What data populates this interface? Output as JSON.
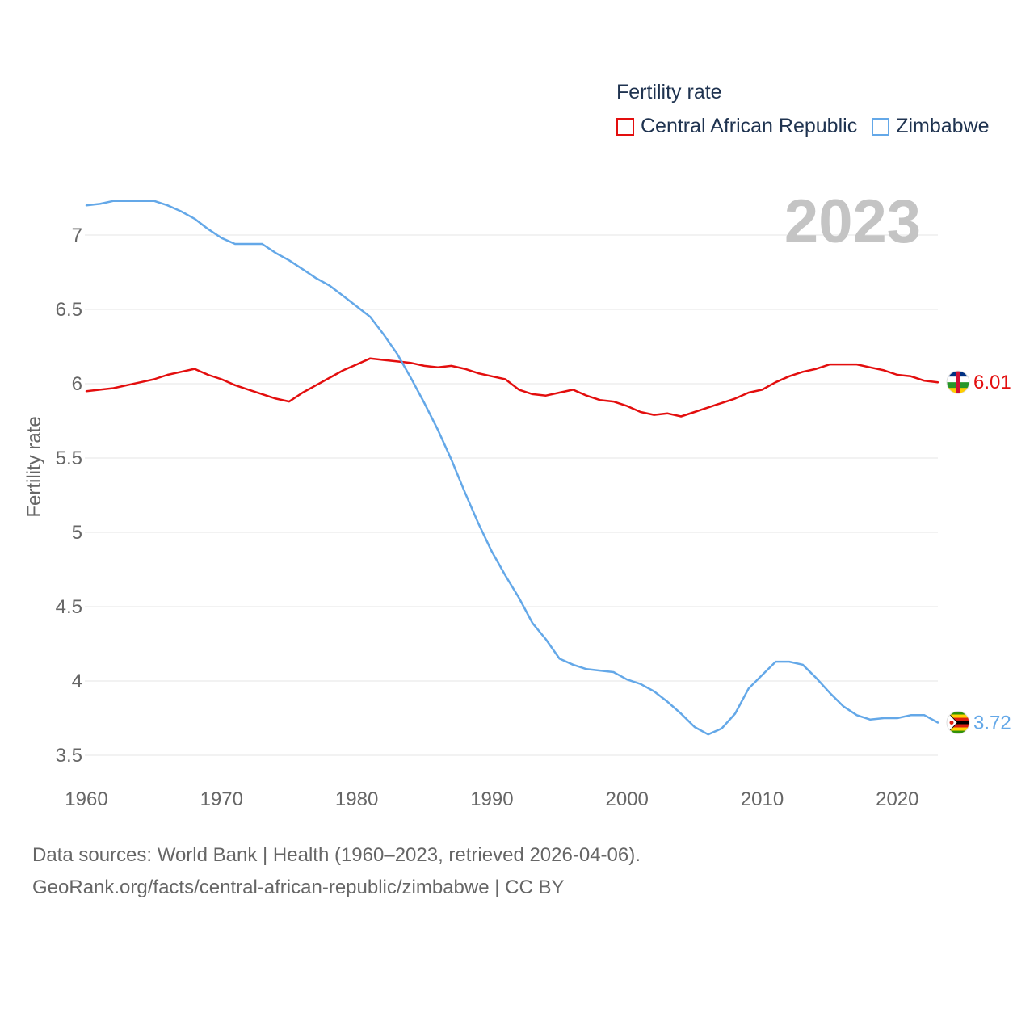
{
  "legend": {
    "title": "Fertility rate",
    "items": [
      {
        "label": "Central African Republic",
        "color": "#e30e0e"
      },
      {
        "label": "Zimbabwe",
        "color": "#64a8e8"
      }
    ]
  },
  "footer": {
    "line1": "Data sources: World Bank | Health (1960–2023, retrieved 2026-04-06).",
    "line2": "GeoRank.org/facts/central-african-republic/zimbabwe | CC BY"
  },
  "chart_data": {
    "type": "line",
    "title": "Fertility rate",
    "year_label": "2023",
    "xlabel": "",
    "ylabel": "Fertility rate",
    "xlim": [
      1960,
      2023
    ],
    "ylim": [
      3.5,
      7.2
    ],
    "x_ticks": [
      1960,
      1970,
      1980,
      1990,
      2000,
      2010,
      2020
    ],
    "y_ticks": [
      3.5,
      4,
      4.5,
      5,
      5.5,
      6,
      6.5,
      7
    ],
    "y_tick_labels": [
      "3.5",
      "4",
      "4.5",
      "5",
      "5.5",
      "6",
      "6.5",
      "7"
    ],
    "grid": true,
    "x": [
      1960,
      1961,
      1962,
      1963,
      1964,
      1965,
      1966,
      1967,
      1968,
      1969,
      1970,
      1971,
      1972,
      1973,
      1974,
      1975,
      1976,
      1977,
      1978,
      1979,
      1980,
      1981,
      1982,
      1983,
      1984,
      1985,
      1986,
      1987,
      1988,
      1989,
      1990,
      1991,
      1992,
      1993,
      1994,
      1995,
      1996,
      1997,
      1998,
      1999,
      2000,
      2001,
      2002,
      2003,
      2004,
      2005,
      2006,
      2007,
      2008,
      2009,
      2010,
      2011,
      2012,
      2013,
      2014,
      2015,
      2016,
      2017,
      2018,
      2019,
      2020,
      2021,
      2022,
      2023
    ],
    "series": [
      {
        "name": "Central African Republic",
        "color": "#e30e0e",
        "end_label": "6.01",
        "values": [
          5.95,
          5.96,
          5.97,
          5.99,
          6.01,
          6.03,
          6.06,
          6.08,
          6.1,
          6.06,
          6.03,
          5.99,
          5.96,
          5.93,
          5.9,
          5.88,
          5.94,
          5.99,
          6.04,
          6.09,
          6.13,
          6.17,
          6.16,
          6.15,
          6.14,
          6.12,
          6.11,
          6.12,
          6.1,
          6.07,
          6.05,
          6.03,
          5.96,
          5.93,
          5.92,
          5.94,
          5.96,
          5.92,
          5.89,
          5.88,
          5.85,
          5.81,
          5.79,
          5.8,
          5.78,
          5.81,
          5.84,
          5.87,
          5.9,
          5.94,
          5.96,
          6.01,
          6.05,
          6.08,
          6.1,
          6.13,
          6.13,
          6.13,
          6.11,
          6.09,
          6.06,
          6.05,
          6.02,
          6.01
        ]
      },
      {
        "name": "Zimbabwe",
        "color": "#64a8e8",
        "end_label": "3.72",
        "values": [
          7.2,
          7.21,
          7.23,
          7.23,
          7.23,
          7.23,
          7.2,
          7.16,
          7.11,
          7.04,
          6.98,
          6.94,
          6.94,
          6.94,
          6.88,
          6.83,
          6.77,
          6.71,
          6.66,
          6.59,
          6.52,
          6.45,
          6.33,
          6.2,
          6.04,
          5.87,
          5.69,
          5.49,
          5.27,
          5.06,
          4.87,
          4.71,
          4.56,
          4.39,
          4.28,
          4.15,
          4.11,
          4.08,
          4.07,
          4.06,
          4.01,
          3.98,
          3.93,
          3.86,
          3.78,
          3.69,
          3.64,
          3.68,
          3.78,
          3.95,
          4.04,
          4.13,
          4.13,
          4.11,
          4.02,
          3.92,
          3.83,
          3.77,
          3.74,
          3.75,
          3.75,
          3.77,
          3.77,
          3.72
        ]
      }
    ]
  }
}
